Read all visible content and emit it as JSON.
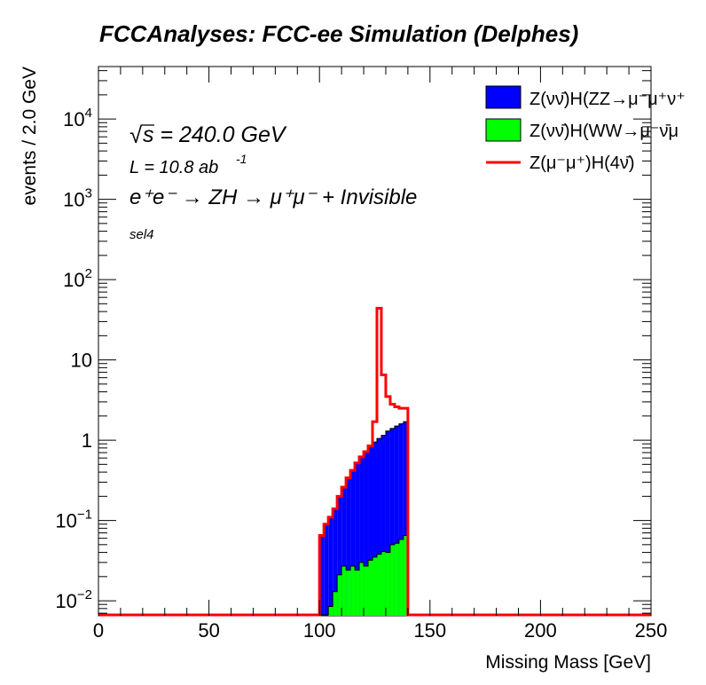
{
  "chart_data": {
    "type": "histogram",
    "title": "FCCAnalyses: FCC-ee Simulation (Delphes)",
    "xlabel": "Missing Mass [GeV]",
    "ylabel": "events / 2.0 GeV",
    "xlim": [
      0,
      250
    ],
    "ylim": [
      0.0065,
      45000
    ],
    "yscale": "log",
    "bin_width": 2.0,
    "x_ticks": [
      "0",
      "50",
      "100",
      "150",
      "200",
      "250"
    ],
    "y_ticks": [
      {
        "value": 0.01,
        "base": "10",
        "exp": "−2"
      },
      {
        "value": 0.1,
        "base": "10",
        "exp": "−1"
      },
      {
        "value": 1,
        "base": "1",
        "exp": ""
      },
      {
        "value": 10,
        "base": "10",
        "exp": ""
      },
      {
        "value": 100,
        "base": "10",
        "exp": "2"
      },
      {
        "value": 1000,
        "base": "10",
        "exp": "3"
      },
      {
        "value": 10000,
        "base": "10",
        "exp": "4"
      }
    ],
    "annotations": {
      "sqrt_s": "s = 240.0 GeV",
      "lumi_prefix": "L = 10.8 ab",
      "lumi_exp": "-1",
      "process": "e⁺e⁻ → ZH → μ⁺μ⁻ + Invisible",
      "selection": "sel4"
    },
    "legend_position": "top-right",
    "series": [
      {
        "name": "Z(νν̄)H(ZZ→μ⁻μ⁺ν⁺",
        "style": "stacked-fill",
        "color": "#0000ff",
        "bin_edges_start": 100,
        "values": [
          0.065,
          0.09,
          0.11,
          0.14,
          0.2,
          0.26,
          0.34,
          0.42,
          0.52,
          0.62,
          0.72,
          0.85,
          0.95,
          1.05,
          1.15,
          1.3,
          1.4,
          1.5,
          1.6,
          1.7
        ]
      },
      {
        "name": "Z(νν̄)H(WW→μ⁻ν̄μ",
        "style": "stacked-fill",
        "color": "#00ff00",
        "bin_edges_start": 100,
        "values": [
          0,
          0,
          0.0085,
          0.013,
          0.021,
          0.027,
          0.024,
          0.027,
          0.024,
          0.03,
          0.027,
          0.032,
          0.035,
          0.038,
          0.041,
          0.04,
          0.05,
          0.052,
          0.058,
          0.065
        ]
      },
      {
        "name": "Z(μ⁻μ⁺)H(4ν̄)",
        "style": "line",
        "color": "#ff0000",
        "bin_edges_start": 100,
        "values": [
          0.065,
          0.09,
          0.11,
          0.14,
          0.2,
          0.26,
          0.34,
          0.42,
          0.52,
          0.62,
          0.72,
          0.85,
          1.7,
          44,
          6.5,
          3.5,
          2.8,
          2.6,
          2.5,
          2.5
        ]
      }
    ]
  }
}
